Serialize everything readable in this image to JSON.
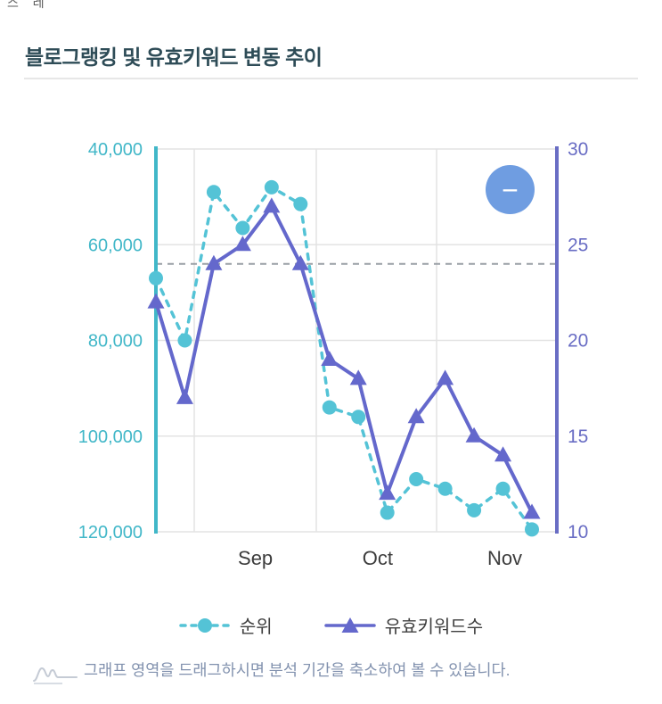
{
  "page": {
    "top_partial_text": "스 레",
    "title": "블로그랭킹 및 유효키워드 변동 추이",
    "hint": "그래프 영역을 드래그하시면 분석 기간을 축소하여 볼 수 있습니다.",
    "colors": {
      "title": "#2e4c57",
      "hint_text": "#8191ae",
      "divider": "#e7e7e7",
      "zoom_button": "#6f9de1"
    }
  },
  "controls": {
    "zoom_out_symbol": "−"
  },
  "chart_data": {
    "type": "line",
    "title": "블로그랭킹 및 유효키워드 변동 추이",
    "x_unit": "weekly points, mid-Aug to mid-Nov",
    "month_labels": [
      "Sep",
      "Oct",
      "Nov"
    ],
    "left_axis": {
      "label": "순위",
      "ticks": [
        "40,000",
        "60,000",
        "80,000",
        "100,000",
        "120,000"
      ],
      "min": 40000,
      "max": 120000,
      "inverted": true,
      "color": "#41b7c8"
    },
    "right_axis": {
      "label": "유효키워드수",
      "ticks": [
        "30",
        "25",
        "20",
        "15",
        "10"
      ],
      "min": 10,
      "max": 30,
      "color": "#696dc4"
    },
    "reference_line": {
      "axis": "right",
      "value": 24,
      "style": "dashed",
      "color": "#9aa0a6"
    },
    "grid": {
      "horizontal": true,
      "vertical_month_boundaries": true
    },
    "series": [
      {
        "name": "순위",
        "axis": "left",
        "color": "#54c3d6",
        "marker": "circle",
        "line": "dashed",
        "values": [
          67000,
          80000,
          49000,
          56500,
          48000,
          51500,
          94000,
          96000,
          116000,
          109000,
          111000,
          115500,
          111000,
          119500
        ]
      },
      {
        "name": "유효키워드수",
        "axis": "right",
        "color": "#6468cc",
        "marker": "triangle",
        "line": "solid",
        "values": [
          22,
          17,
          24,
          25,
          27,
          24,
          19,
          18,
          12,
          16,
          18,
          15,
          14,
          11
        ]
      }
    ],
    "legend_position": "bottom"
  },
  "legend": [
    {
      "label": "순위"
    },
    {
      "label": "유효키워드수"
    }
  ]
}
